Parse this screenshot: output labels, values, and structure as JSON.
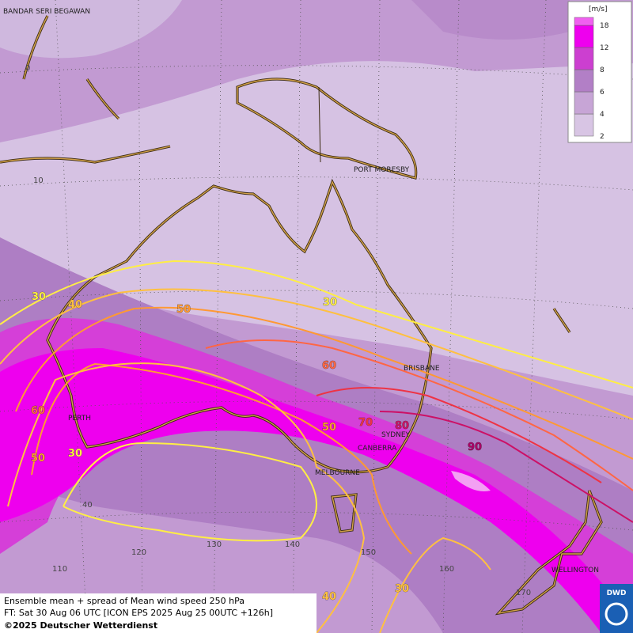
{
  "legend": {
    "unit": "[m/s]",
    "levels": [
      2,
      4,
      6,
      8,
      12,
      18
    ],
    "colors": [
      "#d8c5e4",
      "#c7a5d6",
      "#b27fc6",
      "#cc3fd0",
      "#ee00ee",
      "#f060f0"
    ]
  },
  "places": [
    "BANDAR SERI BEGAWAN",
    "PORT MORESBY",
    "BRISBANE",
    "PERTH",
    "SYDNEY",
    "CANBERRA",
    "MELBOURNE",
    "WELLINGTON"
  ],
  "lat_labels": [
    "0",
    "10",
    "40"
  ],
  "lon_labels": [
    "110",
    "120",
    "130",
    "140",
    "150",
    "160",
    "170"
  ],
  "contour_labels": [
    30,
    40,
    50,
    30,
    60,
    60,
    50,
    30,
    50,
    70,
    80,
    90,
    30,
    40
  ],
  "footer": [
    "Ensemble mean + spread of Mean wind speed 250 hPa",
    "FT: Sat 30 Aug 06 UTC [ICON EPS 2025 Aug 25 00UTC +126h]",
    "©2025 Deutscher Wetterdienst"
  ],
  "logo": "DWD"
}
